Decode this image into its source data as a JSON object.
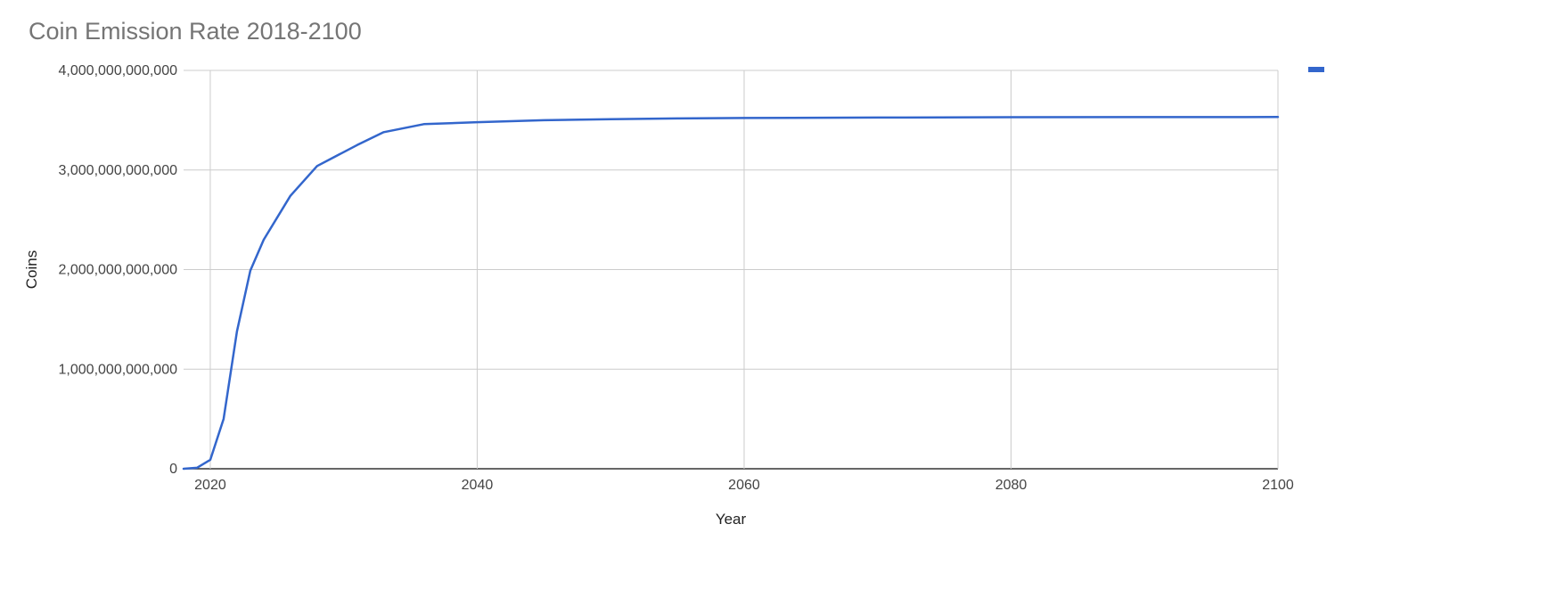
{
  "chart_data": {
    "type": "line",
    "title": "Coin Emission Rate 2018-2100",
    "xlabel": "Year",
    "ylabel": "Coins",
    "xlim": [
      2018,
      2100
    ],
    "ylim": [
      0,
      4000000000000
    ],
    "x_ticks": [
      2020,
      2040,
      2060,
      2080,
      2100
    ],
    "x_tick_labels": [
      "2020",
      "2040",
      "2060",
      "2080",
      "2100"
    ],
    "y_ticks": [
      0,
      1000000000000,
      2000000000000,
      3000000000000,
      4000000000000
    ],
    "y_tick_labels": [
      "0",
      "1,000,000,000,000",
      "2,000,000,000,000",
      "3,000,000,000,000",
      "4,000,000,000,000"
    ],
    "grid": true,
    "legend": "top-right",
    "series": [
      {
        "color": "#3366cc",
        "points": [
          [
            2018,
            0
          ],
          [
            2019,
            10000000000
          ],
          [
            2020,
            90000000000
          ],
          [
            2021,
            500000000000
          ],
          [
            2022,
            1380000000000
          ],
          [
            2023,
            1990000000000
          ],
          [
            2024,
            2300000000000
          ],
          [
            2026,
            2740000000000
          ],
          [
            2028,
            3040000000000
          ],
          [
            2029,
            3110000000000
          ],
          [
            2031,
            3250000000000
          ],
          [
            2033,
            3380000000000
          ],
          [
            2036,
            3460000000000
          ],
          [
            2040,
            3480000000000
          ],
          [
            2045,
            3500000000000
          ],
          [
            2050,
            3510000000000
          ],
          [
            2055,
            3518000000000
          ],
          [
            2060,
            3522000000000
          ],
          [
            2070,
            3527000000000
          ],
          [
            2080,
            3530000000000
          ],
          [
            2090,
            3531000000000
          ],
          [
            2100,
            3532000000000
          ]
        ]
      }
    ]
  }
}
